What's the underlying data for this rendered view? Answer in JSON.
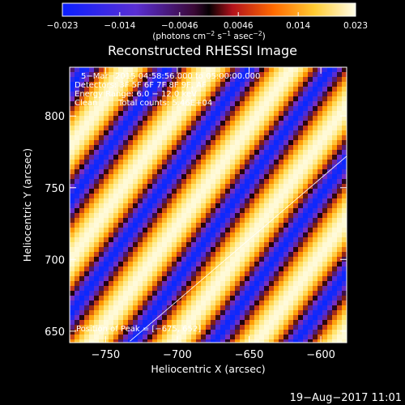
{
  "chart_data": {
    "type": "heatmap",
    "title": "Reconstructed RHESSI Image",
    "xlabel": "Heliocentric X (arcsec)",
    "ylabel": "Heliocentric Y (arcsec)",
    "xlim": [
      -775,
      -582
    ],
    "ylim": [
      642,
      834
    ],
    "x_ticks": [
      -750,
      -700,
      -650,
      -600
    ],
    "x_tick_labels": [
      "−750",
      "−700",
      "−650",
      "−600"
    ],
    "y_ticks": [
      650,
      700,
      750,
      800
    ],
    "y_tick_labels": [
      "650",
      "700",
      "750",
      "800"
    ],
    "colorbar": {
      "range": [
        -0.023,
        0.023
      ],
      "ticks": [
        -0.023,
        -0.014,
        -0.0046,
        0.0046,
        0.014,
        0.023
      ],
      "tick_labels": [
        "−0.023",
        "−0.014",
        "−0.0046",
        "0.0046",
        "0.014",
        "0.023"
      ],
      "label_main": "(photons cm",
      "label_sup1": "−2",
      "label_mid1": " s",
      "label_sup2": "−1",
      "label_mid2": " asec",
      "label_sup3": "−2",
      "label_end": ")"
    },
    "annotations": {
      "line1": "5−Mar−2015 04:58:56.000 to 05:00:00.000",
      "line2": "Detectors: 3F 5F 6F 7F 8F 9F, AF",
      "line3": "Energy Range: 6.0 − 12.0 keV",
      "line4_a": "Clean",
      "line4_b": "Total counts: 5.46E+04",
      "peak": "Position of Peak = [−675, 652]"
    },
    "limb_line": {
      "x": [
        -733,
        -582
      ],
      "y": [
        643,
        772
      ]
    },
    "pattern": {
      "description_free": true,
      "stripe_angle_deg": 36,
      "stripe_period": 82,
      "phase": 0.35,
      "colors": [
        "#0a28ff",
        "#7b2fbe",
        "#1a0008",
        "#c0331a",
        "#ff9a00",
        "#ffe060",
        "#fffde6"
      ]
    },
    "grid": false
  },
  "footer": {
    "timestamp": "19−Aug−2017 11:01"
  }
}
